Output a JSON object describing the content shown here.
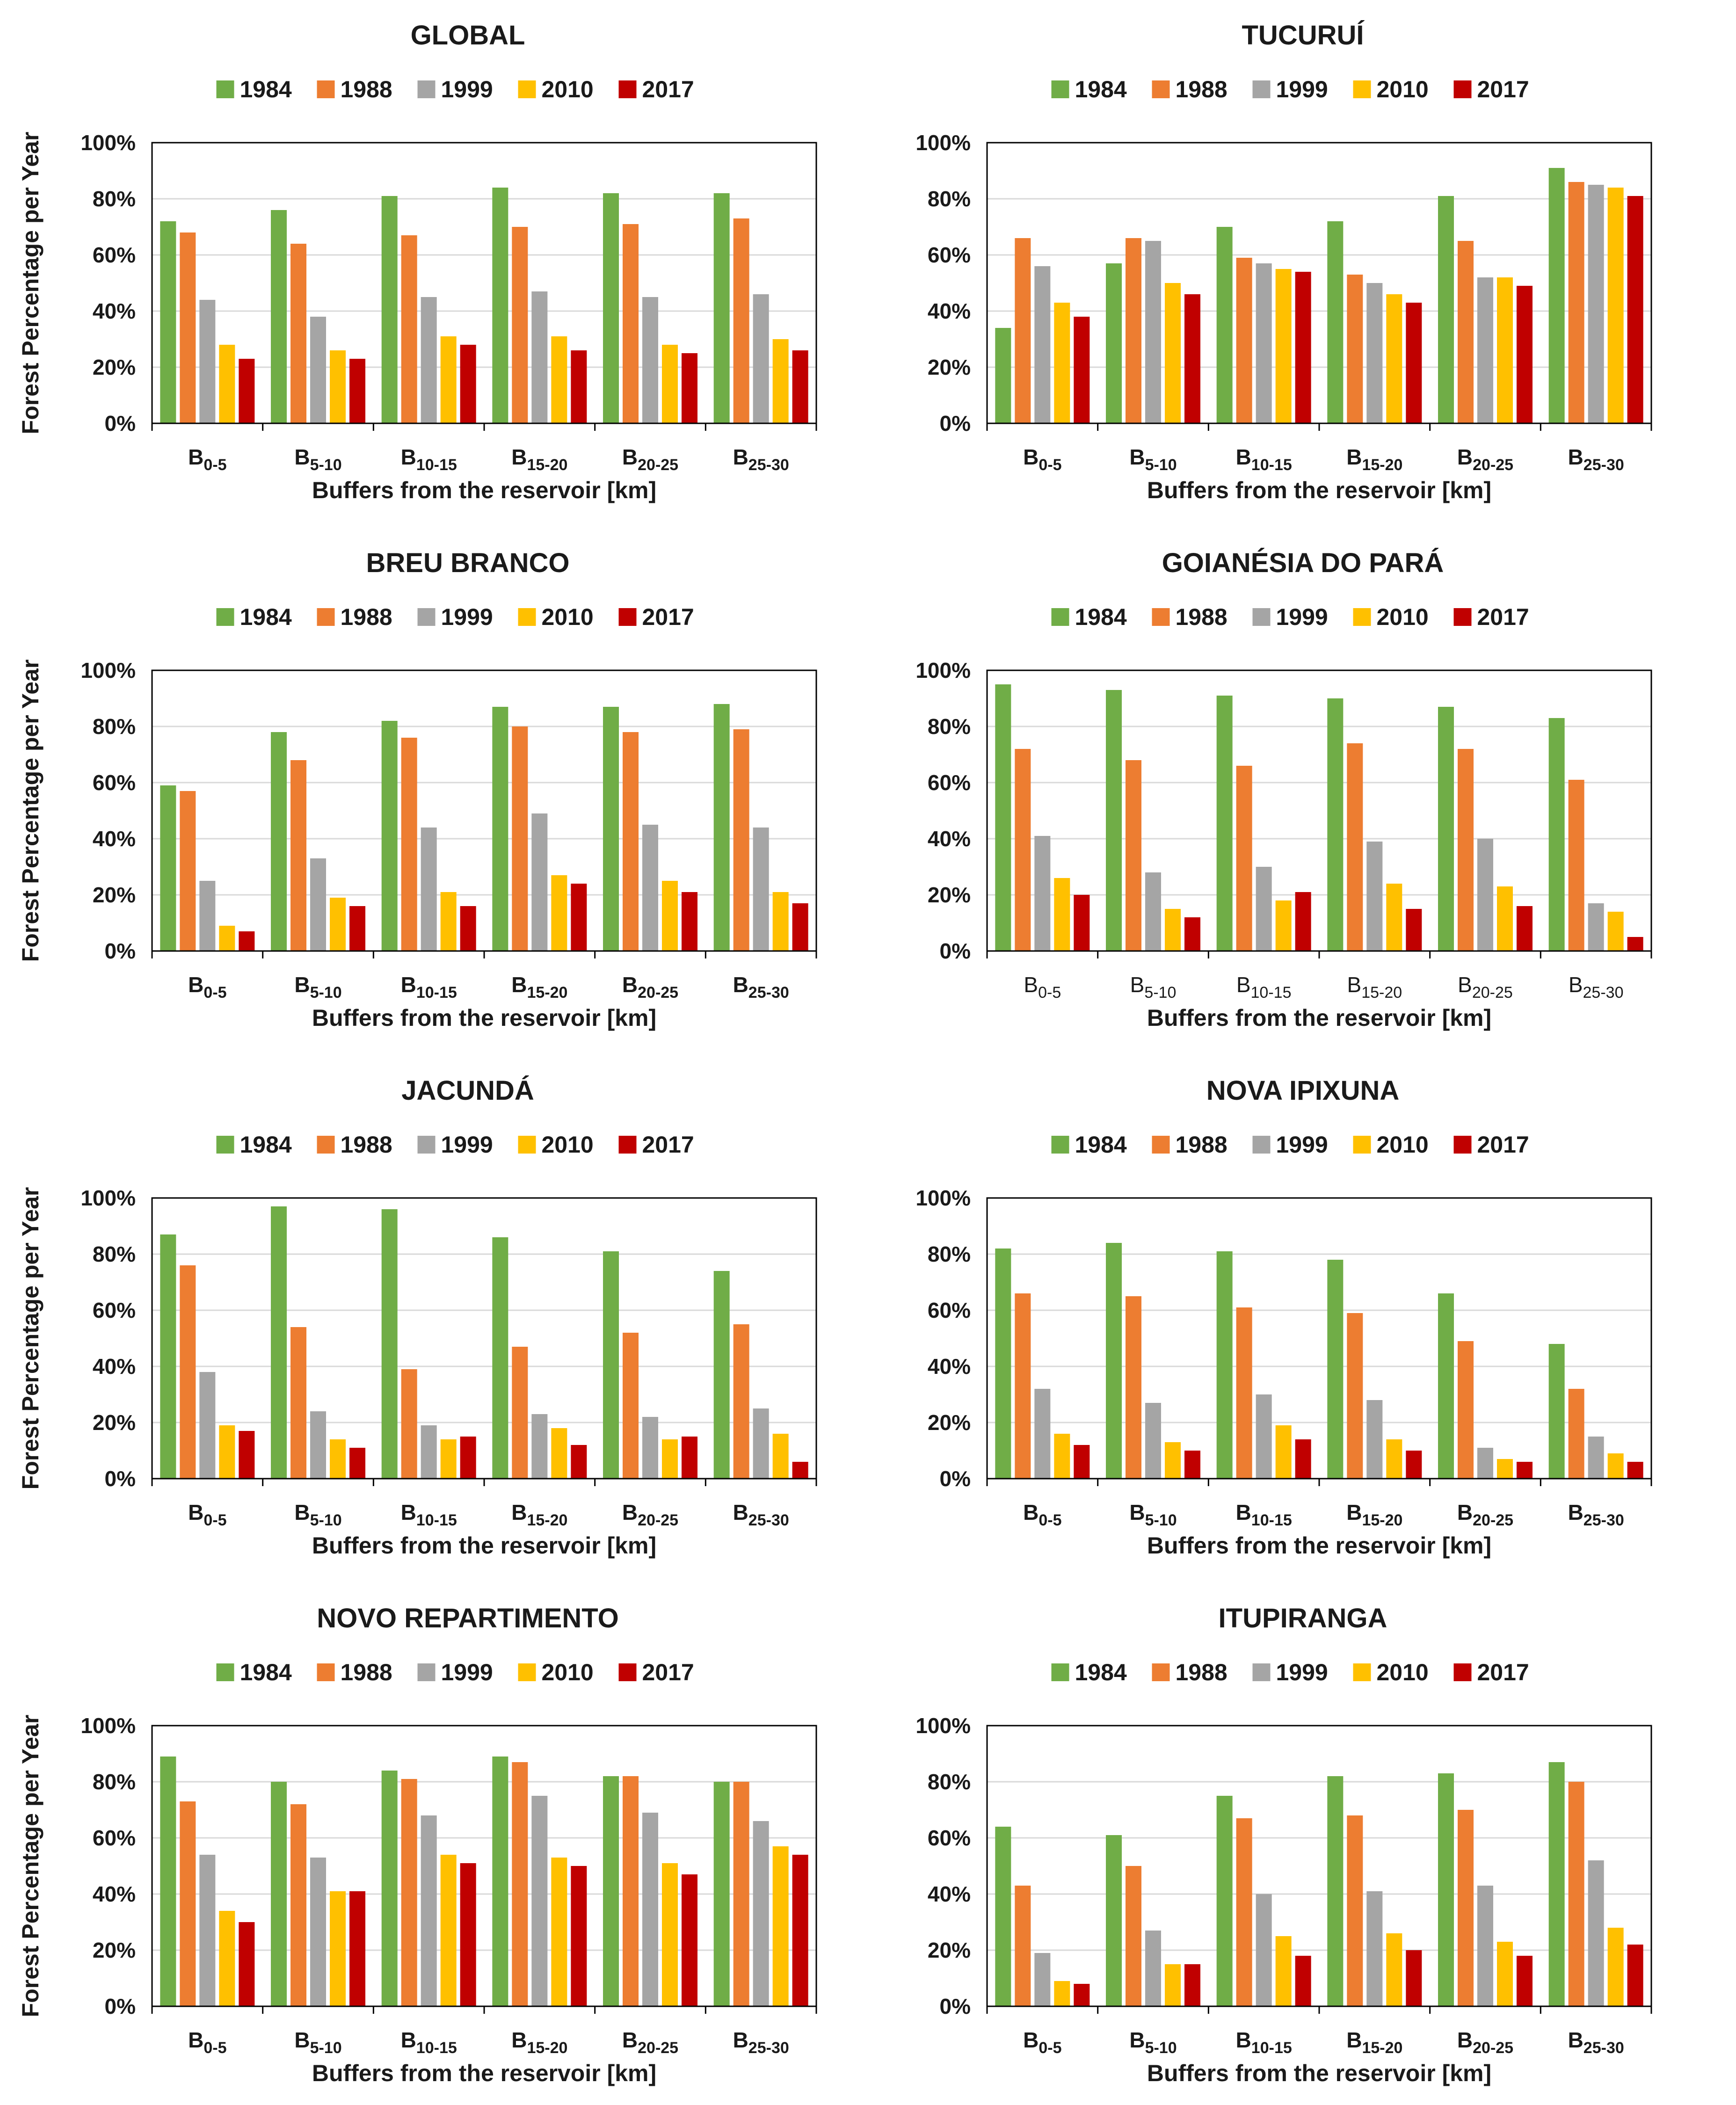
{
  "colors": {
    "1984": "#70AD47",
    "1988": "#ED7D31",
    "1999": "#A5A5A5",
    "2010": "#FFC000",
    "2017": "#C00000"
  },
  "chart_data": [
    {
      "type": "bar",
      "title": "GLOBAL",
      "categories": [
        {
          "base": "B",
          "sub": "0-5"
        },
        {
          "base": "B",
          "sub": "5-10"
        },
        {
          "base": "B",
          "sub": "10-15"
        },
        {
          "base": "B",
          "sub": "15-20"
        },
        {
          "base": "B",
          "sub": "20-25"
        },
        {
          "base": "B",
          "sub": "25-30"
        }
      ],
      "series": [
        {
          "name": "1984",
          "values": [
            72,
            76,
            81,
            84,
            82,
            82
          ]
        },
        {
          "name": "1988",
          "values": [
            68,
            64,
            67,
            70,
            71,
            73
          ]
        },
        {
          "name": "1999",
          "values": [
            44,
            38,
            45,
            47,
            45,
            46
          ]
        },
        {
          "name": "2010",
          "values": [
            28,
            26,
            31,
            31,
            28,
            30
          ]
        },
        {
          "name": "2017",
          "values": [
            23,
            23,
            28,
            26,
            25,
            26
          ]
        }
      ],
      "yticks": [
        "0%",
        "20%",
        "40%",
        "60%",
        "80%",
        "100%"
      ],
      "ylim": [
        0,
        100
      ],
      "xlabel": "Buffers from the reservoir [km]",
      "ylabel": "Forest Percentage per Year",
      "bold_categories": true
    },
    {
      "type": "bar",
      "title": "TUCURUÍ",
      "categories": [
        {
          "base": "B",
          "sub": "0-5"
        },
        {
          "base": "B",
          "sub": "5-10"
        },
        {
          "base": "B",
          "sub": "10-15"
        },
        {
          "base": "B",
          "sub": "15-20"
        },
        {
          "base": "B",
          "sub": "20-25"
        },
        {
          "base": "B",
          "sub": "25-30"
        }
      ],
      "series": [
        {
          "name": "1984",
          "values": [
            34,
            57,
            70,
            72,
            81,
            91
          ]
        },
        {
          "name": "1988",
          "values": [
            66,
            66,
            59,
            53,
            65,
            86
          ]
        },
        {
          "name": "1999",
          "values": [
            56,
            65,
            57,
            50,
            52,
            85
          ]
        },
        {
          "name": "2010",
          "values": [
            43,
            50,
            55,
            46,
            52,
            84
          ]
        },
        {
          "name": "2017",
          "values": [
            38,
            46,
            54,
            43,
            49,
            81
          ]
        }
      ],
      "yticks": [
        "0%",
        "20%",
        "40%",
        "60%",
        "80%",
        "100%"
      ],
      "ylim": [
        0,
        100
      ],
      "xlabel": "Buffers from the reservoir [km]",
      "ylabel": "",
      "bold_categories": true
    },
    {
      "type": "bar",
      "title": "BREU BRANCO",
      "categories": [
        {
          "base": "B",
          "sub": "0-5"
        },
        {
          "base": "B",
          "sub": "5-10"
        },
        {
          "base": "B",
          "sub": "10-15"
        },
        {
          "base": "B",
          "sub": "15-20"
        },
        {
          "base": "B",
          "sub": "20-25"
        },
        {
          "base": "B",
          "sub": "25-30"
        }
      ],
      "series": [
        {
          "name": "1984",
          "values": [
            59,
            78,
            82,
            87,
            87,
            88
          ]
        },
        {
          "name": "1988",
          "values": [
            57,
            68,
            76,
            80,
            78,
            79
          ]
        },
        {
          "name": "1999",
          "values": [
            25,
            33,
            44,
            49,
            45,
            44
          ]
        },
        {
          "name": "2010",
          "values": [
            9,
            19,
            21,
            27,
            25,
            21
          ]
        },
        {
          "name": "2017",
          "values": [
            7,
            16,
            16,
            24,
            21,
            17
          ]
        }
      ],
      "yticks": [
        "0%",
        "20%",
        "40%",
        "60%",
        "80%",
        "100%"
      ],
      "ylim": [
        0,
        100
      ],
      "xlabel": "Buffers from the reservoir [km]",
      "ylabel": "Forest Percentage per Year",
      "bold_categories": true
    },
    {
      "type": "bar",
      "title": "GOIANÉSIA DO PARÁ",
      "categories": [
        {
          "base": "B",
          "sub": "0-5"
        },
        {
          "base": "B",
          "sub": "5-10"
        },
        {
          "base": "B",
          "sub": "10-15"
        },
        {
          "base": "B",
          "sub": "15-20"
        },
        {
          "base": "B",
          "sub": "20-25"
        },
        {
          "base": "B",
          "sub": "25-30"
        }
      ],
      "series": [
        {
          "name": "1984",
          "values": [
            95,
            93,
            91,
            90,
            87,
            83
          ]
        },
        {
          "name": "1988",
          "values": [
            72,
            68,
            66,
            74,
            72,
            61
          ]
        },
        {
          "name": "1999",
          "values": [
            41,
            28,
            30,
            39,
            40,
            17
          ]
        },
        {
          "name": "2010",
          "values": [
            26,
            15,
            18,
            24,
            23,
            14
          ]
        },
        {
          "name": "2017",
          "values": [
            20,
            12,
            21,
            15,
            16,
            5
          ]
        }
      ],
      "yticks": [
        "0%",
        "20%",
        "40%",
        "60%",
        "80%",
        "100%"
      ],
      "ylim": [
        0,
        100
      ],
      "xlabel": "Buffers from the reservoir [km]",
      "ylabel": "",
      "bold_categories": false
    },
    {
      "type": "bar",
      "title": "JACUNDÁ",
      "categories": [
        {
          "base": "B",
          "sub": "0-5"
        },
        {
          "base": "B",
          "sub": "5-10"
        },
        {
          "base": "B",
          "sub": "10-15"
        },
        {
          "base": "B",
          "sub": "15-20"
        },
        {
          "base": "B",
          "sub": "20-25"
        },
        {
          "base": "B",
          "sub": "25-30"
        }
      ],
      "series": [
        {
          "name": "1984",
          "values": [
            87,
            97,
            96,
            86,
            81,
            74
          ]
        },
        {
          "name": "1988",
          "values": [
            76,
            54,
            39,
            47,
            52,
            55
          ]
        },
        {
          "name": "1999",
          "values": [
            38,
            24,
            19,
            23,
            22,
            25
          ]
        },
        {
          "name": "2010",
          "values": [
            19,
            14,
            14,
            18,
            14,
            16
          ]
        },
        {
          "name": "2017",
          "values": [
            17,
            11,
            15,
            12,
            15,
            6
          ]
        }
      ],
      "yticks": [
        "0%",
        "20%",
        "40%",
        "60%",
        "80%",
        "100%"
      ],
      "ylim": [
        0,
        100
      ],
      "xlabel": "Buffers from the reservoir [km]",
      "ylabel": "Forest Percentage per Year",
      "bold_categories": true
    },
    {
      "type": "bar",
      "title": "NOVA IPIXUNA",
      "categories": [
        {
          "base": "B",
          "sub": "0-5"
        },
        {
          "base": "B",
          "sub": "5-10"
        },
        {
          "base": "B",
          "sub": "10-15"
        },
        {
          "base": "B",
          "sub": "15-20"
        },
        {
          "base": "B",
          "sub": "20-25"
        },
        {
          "base": "B",
          "sub": "25-30"
        }
      ],
      "series": [
        {
          "name": "1984",
          "values": [
            82,
            84,
            81,
            78,
            66,
            48
          ]
        },
        {
          "name": "1988",
          "values": [
            66,
            65,
            61,
            59,
            49,
            32
          ]
        },
        {
          "name": "1999",
          "values": [
            32,
            27,
            30,
            28,
            11,
            15
          ]
        },
        {
          "name": "2010",
          "values": [
            16,
            13,
            19,
            14,
            7,
            9
          ]
        },
        {
          "name": "2017",
          "values": [
            12,
            10,
            14,
            10,
            6,
            6
          ]
        }
      ],
      "yticks": [
        "0%",
        "20%",
        "40%",
        "60%",
        "80%",
        "100%"
      ],
      "ylim": [
        0,
        100
      ],
      "xlabel": "Buffers from the reservoir [km]",
      "ylabel": "",
      "bold_categories": true
    },
    {
      "type": "bar",
      "title": "NOVO REPARTIMENTO",
      "categories": [
        {
          "base": "B",
          "sub": "0-5"
        },
        {
          "base": "B",
          "sub": "5-10"
        },
        {
          "base": "B",
          "sub": "10-15"
        },
        {
          "base": "B",
          "sub": "15-20"
        },
        {
          "base": "B",
          "sub": "20-25"
        },
        {
          "base": "B",
          "sub": "25-30"
        }
      ],
      "series": [
        {
          "name": "1984",
          "values": [
            89,
            80,
            84,
            89,
            82,
            80
          ]
        },
        {
          "name": "1988",
          "values": [
            73,
            72,
            81,
            87,
            82,
            80
          ]
        },
        {
          "name": "1999",
          "values": [
            54,
            53,
            68,
            75,
            69,
            66
          ]
        },
        {
          "name": "2010",
          "values": [
            34,
            41,
            54,
            53,
            51,
            57
          ]
        },
        {
          "name": "2017",
          "values": [
            30,
            41,
            51,
            50,
            47,
            54
          ]
        }
      ],
      "yticks": [
        "0%",
        "20%",
        "40%",
        "60%",
        "80%",
        "100%"
      ],
      "ylim": [
        0,
        100
      ],
      "xlabel": "Buffers from the reservoir [km]",
      "ylabel": "Forest Percentage per Year",
      "bold_categories": true
    },
    {
      "type": "bar",
      "title": "ITUPIRANGA",
      "categories": [
        {
          "base": "B",
          "sub": "0-5"
        },
        {
          "base": "B",
          "sub": "5-10"
        },
        {
          "base": "B",
          "sub": "10-15"
        },
        {
          "base": "B",
          "sub": "15-20"
        },
        {
          "base": "B",
          "sub": "20-25"
        },
        {
          "base": "B",
          "sub": "25-30"
        }
      ],
      "series": [
        {
          "name": "1984",
          "values": [
            64,
            61,
            75,
            82,
            83,
            87
          ]
        },
        {
          "name": "1988",
          "values": [
            43,
            50,
            67,
            68,
            70,
            80
          ]
        },
        {
          "name": "1999",
          "values": [
            19,
            27,
            40,
            41,
            43,
            52
          ]
        },
        {
          "name": "2010",
          "values": [
            9,
            15,
            25,
            26,
            23,
            28
          ]
        },
        {
          "name": "2017",
          "values": [
            8,
            15,
            18,
            20,
            18,
            22
          ]
        }
      ],
      "yticks": [
        "0%",
        "20%",
        "40%",
        "60%",
        "80%",
        "100%"
      ],
      "ylim": [
        0,
        100
      ],
      "xlabel": "Buffers from the reservoir [km]",
      "ylabel": "",
      "bold_categories": true
    }
  ]
}
